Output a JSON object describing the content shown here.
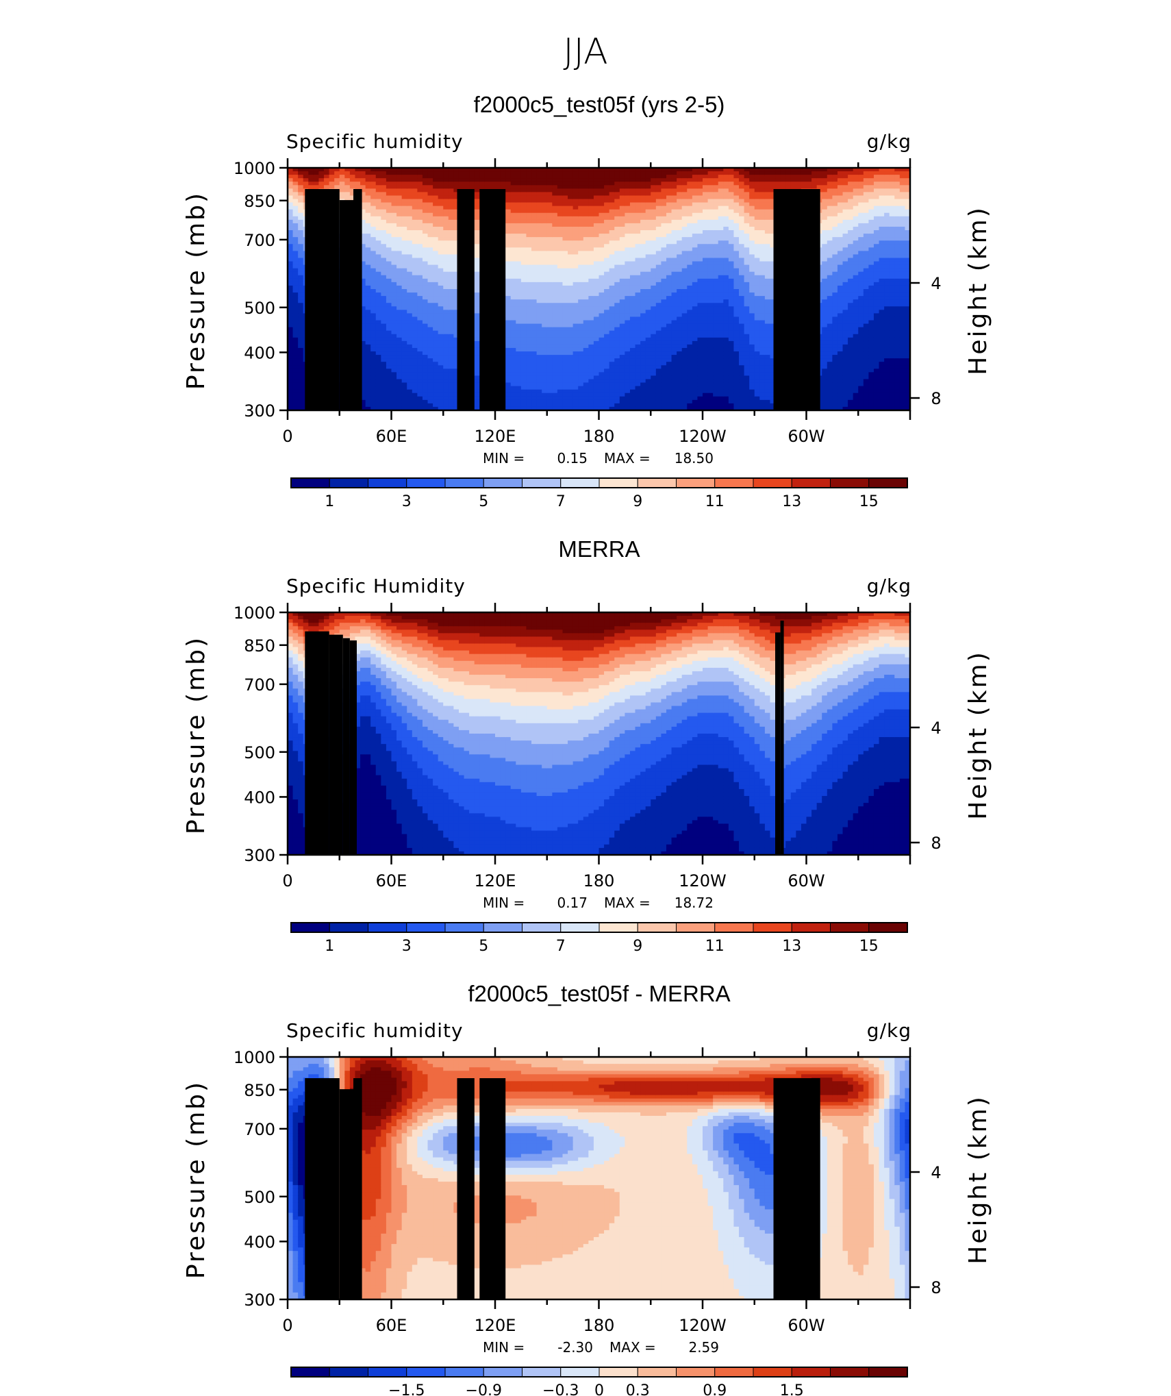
{
  "figure": {
    "title": "JJA"
  },
  "colors": {
    "abs_palette": [
      "#00007f",
      "#0022a6",
      "#0f3fd8",
      "#2459ef",
      "#4a7bf1",
      "#7e9ff3",
      "#b0c4f6",
      "#d9e6f8",
      "#fde6d2",
      "#fcc7ac",
      "#fba07d",
      "#f7774f",
      "#e8461f",
      "#c1220f",
      "#8a0c05",
      "#6a0303"
    ],
    "diff_palette": [
      "#00007f",
      "#0022a6",
      "#0f3fd8",
      "#2459ef",
      "#4a7bf1",
      "#7e9ff3",
      "#b0c4f6",
      "#d9e6f8",
      "#fbe0cc",
      "#f9bc9b",
      "#f6926b",
      "#ef6a40",
      "#dd4016",
      "#b91e0c",
      "#8a0c05",
      "#6a0303"
    ],
    "topography": "#000000"
  },
  "chart_data": [
    {
      "type": "heatmap",
      "title": "f2000c5_test05f (yrs 2-5)",
      "left_label": "Specific humidity",
      "right_label": "g/kg",
      "ylabel": "Pressure (mb)",
      "ylabel_right": "Height (km)",
      "y_ticks": [
        "300",
        "400",
        "500",
        "700",
        "850",
        "1000"
      ],
      "y_tick_values": [
        300,
        400,
        500,
        700,
        850,
        1000
      ],
      "y_right_ticks": [
        "8",
        "4"
      ],
      "y_right_tick_values": [
        8,
        4
      ],
      "ylim": [
        1000,
        300
      ],
      "x_ticks": [
        "0",
        "60E",
        "120E",
        "180",
        "120W",
        "60W"
      ],
      "x_tick_values": [
        0,
        60,
        120,
        180,
        240,
        300
      ],
      "xlim": [
        0,
        360
      ],
      "min_label": "MIN =",
      "min_value": "0.15",
      "max_label": "MAX =",
      "max_value": "18.50",
      "colorbar_labels": [
        "1",
        "3",
        "5",
        "7",
        "9",
        "11",
        "13",
        "15"
      ],
      "colorbar_levels": [
        0,
        1,
        2,
        3,
        4,
        5,
        6,
        7,
        8,
        9,
        10,
        11,
        12,
        13,
        14,
        15,
        16
      ],
      "field": {
        "longitudes": [
          0,
          15,
          30,
          45,
          60,
          75,
          90,
          105,
          120,
          135,
          150,
          165,
          180,
          195,
          210,
          225,
          240,
          255,
          270,
          285,
          300,
          315,
          330,
          345,
          360
        ],
        "surface_q": [
          14,
          17,
          13,
          15,
          16,
          16,
          17,
          17,
          17,
          17,
          17,
          18,
          18,
          17,
          17,
          16,
          15,
          14,
          16,
          16,
          16,
          15,
          14,
          13,
          14
        ],
        "scale_height_km": [
          2.0,
          2.6,
          2.9,
          3.0,
          3.4,
          3.8,
          4.0,
          4.1,
          4.2,
          4.4,
          4.5,
          4.3,
          4.0,
          3.7,
          3.4,
          3.1,
          2.9,
          3.0,
          3.8,
          4.0,
          3.7,
          3.3,
          2.9,
          2.6,
          2.5
        ],
        "topography": [
          [
            10,
            30,
            900
          ],
          [
            30,
            38,
            852
          ],
          [
            38,
            43,
            900
          ],
          [
            98,
            108,
            900
          ],
          [
            111,
            126,
            900
          ],
          [
            281,
            308,
            900
          ]
        ]
      }
    },
    {
      "type": "heatmap",
      "title": "MERRA",
      "left_label": "Specific Humidity",
      "right_label": "g/kg",
      "ylabel": "Pressure (mb)",
      "ylabel_right": "Height (km)",
      "y_ticks": [
        "300",
        "400",
        "500",
        "700",
        "850",
        "1000"
      ],
      "y_tick_values": [
        300,
        400,
        500,
        700,
        850,
        1000
      ],
      "y_right_ticks": [
        "8",
        "4"
      ],
      "y_right_tick_values": [
        8,
        4
      ],
      "ylim": [
        1000,
        300
      ],
      "x_ticks": [
        "0",
        "60E",
        "120E",
        "180",
        "120W",
        "60W"
      ],
      "x_tick_values": [
        0,
        60,
        120,
        180,
        240,
        300
      ],
      "xlim": [
        0,
        360
      ],
      "min_label": "MIN =",
      "min_value": "0.17",
      "max_label": "MAX =",
      "max_value": "18.72",
      "colorbar_labels": [
        "1",
        "3",
        "5",
        "7",
        "9",
        "11",
        "13",
        "15"
      ],
      "colorbar_levels": [
        0,
        1,
        2,
        3,
        4,
        5,
        6,
        7,
        8,
        9,
        10,
        11,
        12,
        13,
        14,
        15,
        16
      ],
      "field": {
        "longitudes": [
          0,
          15,
          30,
          45,
          60,
          75,
          90,
          105,
          120,
          135,
          150,
          165,
          180,
          195,
          210,
          225,
          240,
          255,
          270,
          285,
          300,
          315,
          330,
          345,
          360
        ],
        "surface_q": [
          14,
          17,
          14,
          14,
          16,
          16,
          17,
          17,
          17,
          17,
          17,
          18,
          18,
          17,
          17,
          16,
          15,
          14,
          15,
          16,
          16,
          15,
          14,
          13,
          14
        ],
        "scale_height_km": [
          2.2,
          2.9,
          2.6,
          1.8,
          2.4,
          3.2,
          3.6,
          4.0,
          4.1,
          4.3,
          4.4,
          4.1,
          3.8,
          3.4,
          3.1,
          2.8,
          2.6,
          2.8,
          3.4,
          4.0,
          3.5,
          3.0,
          2.6,
          2.3,
          2.2
        ],
        "topography": [
          [
            10,
            24,
            910
          ],
          [
            24,
            32,
            895
          ],
          [
            32,
            36,
            880
          ],
          [
            36,
            40,
            870
          ],
          [
            282,
            285,
            905
          ],
          [
            285,
            287,
            960
          ]
        ]
      }
    },
    {
      "type": "heatmap",
      "title": "f2000c5_test05f - MERRA",
      "left_label": "Specific humidity",
      "right_label": "g/kg",
      "ylabel": "Pressure (mb)",
      "ylabel_right": "Height (km)",
      "y_ticks": [
        "300",
        "400",
        "500",
        "700",
        "850",
        "1000"
      ],
      "y_tick_values": [
        300,
        400,
        500,
        700,
        850,
        1000
      ],
      "y_right_ticks": [
        "8",
        "4"
      ],
      "y_right_tick_values": [
        8,
        4
      ],
      "ylim": [
        1000,
        300
      ],
      "x_ticks": [
        "0",
        "60E",
        "120E",
        "180",
        "120W",
        "60W"
      ],
      "x_tick_values": [
        0,
        60,
        120,
        180,
        240,
        300
      ],
      "xlim": [
        0,
        360
      ],
      "min_label": "MIN =",
      "min_value": "-2.30",
      "max_label": "MAX =",
      "max_value": "2.59",
      "colorbar_labels": [
        "−1.5",
        "−0.9",
        "−0.3",
        "0",
        "0.3",
        "0.9",
        "1.5"
      ],
      "colorbar_levels": [
        -2.1,
        -1.8,
        -1.5,
        -1.2,
        -0.9,
        -0.6,
        -0.3,
        0,
        0.3,
        0.6,
        0.9,
        1.2,
        1.5,
        1.8,
        2.1
      ],
      "field": {
        "features": [
          {
            "lon": 12,
            "p": 560,
            "dlon": 9,
            "dp": 260,
            "amp": -2.2
          },
          {
            "lon": 22,
            "p": 820,
            "dlon": 7,
            "dp": 160,
            "amp": -1.3
          },
          {
            "lon": 52,
            "p": 870,
            "dlon": 18,
            "dp": 150,
            "amp": 1.8
          },
          {
            "lon": 45,
            "p": 560,
            "dlon": 12,
            "dp": 260,
            "amp": 1.0
          },
          {
            "lon": 110,
            "p": 650,
            "dlon": 30,
            "dp": 70,
            "amp": -1.2
          },
          {
            "lon": 150,
            "p": 640,
            "dlon": 25,
            "dp": 60,
            "amp": -0.8
          },
          {
            "lon": 120,
            "p": 500,
            "dlon": 45,
            "dp": 90,
            "amp": 0.6
          },
          {
            "lon": 215,
            "p": 860,
            "dlon": 55,
            "dp": 50,
            "amp": 1.6
          },
          {
            "lon": 110,
            "p": 880,
            "dlon": 30,
            "dp": 110,
            "amp": 0.8
          },
          {
            "lon": 280,
            "p": 560,
            "dlon": 18,
            "dp": 140,
            "amp": -1.3
          },
          {
            "lon": 258,
            "p": 680,
            "dlon": 14,
            "dp": 70,
            "amp": -0.9
          },
          {
            "lon": 300,
            "p": 860,
            "dlon": 28,
            "dp": 70,
            "amp": 1.2
          },
          {
            "lon": 330,
            "p": 520,
            "dlon": 9,
            "dp": 120,
            "amp": 0.5
          },
          {
            "lon": 356,
            "p": 760,
            "dlon": 10,
            "dp": 200,
            "amp": -1.2
          },
          {
            "lon": 325,
            "p": 850,
            "dlon": 18,
            "dp": 70,
            "amp": 0.7
          }
        ],
        "topography": [
          [
            10,
            30,
            900
          ],
          [
            30,
            38,
            852
          ],
          [
            38,
            43,
            900
          ],
          [
            98,
            108,
            900
          ],
          [
            111,
            126,
            900
          ],
          [
            281,
            308,
            900
          ]
        ]
      }
    }
  ]
}
